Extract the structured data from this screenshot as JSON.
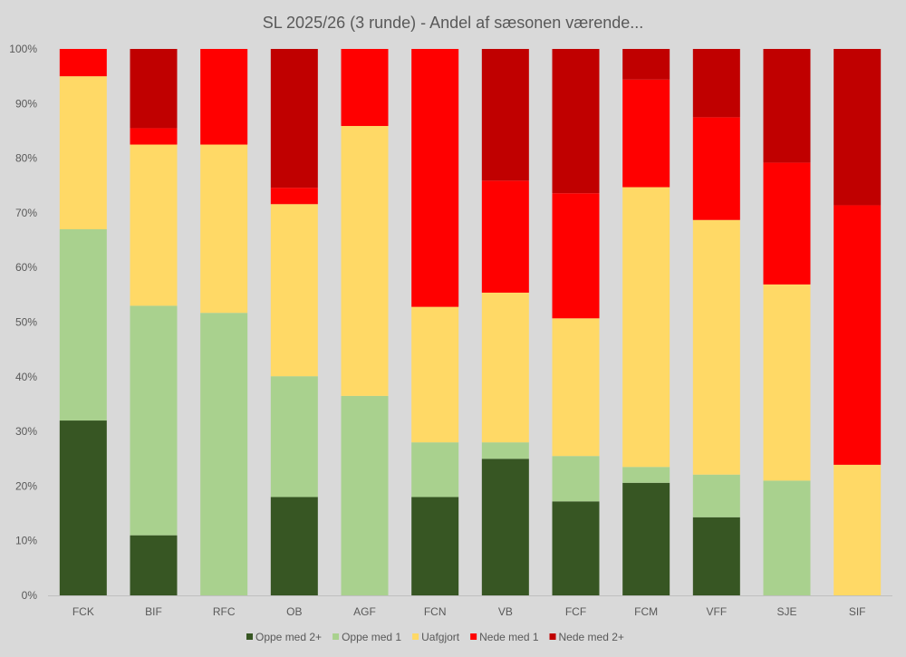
{
  "chart_data": {
    "type": "bar",
    "stacked": true,
    "title": "SL 2025/26 (3 runde) - Andel af sæsonen værende...",
    "xlabel": "",
    "ylabel": "",
    "ylim": [
      0,
      100
    ],
    "y_ticks": [
      "0%",
      "10%",
      "20%",
      "30%",
      "40%",
      "50%",
      "60%",
      "70%",
      "80%",
      "90%",
      "100%"
    ],
    "grid": false,
    "legend_position": "bottom",
    "categories": [
      "FCK",
      "BIF",
      "RFC",
      "OB",
      "AGF",
      "FCN",
      "VB",
      "FCF",
      "FCM",
      "VFF",
      "SJE",
      "SIF"
    ],
    "series": [
      {
        "name": "Oppe med 2+",
        "color": "#375623",
        "values": [
          32,
          11,
          0,
          18,
          0,
          18,
          25,
          17.2,
          20.6,
          14.3,
          0,
          0
        ]
      },
      {
        "name": "Oppe med 1",
        "color": "#a9d18e",
        "values": [
          35,
          42,
          51.7,
          22.1,
          36.5,
          10,
          3,
          8.3,
          2.9,
          7.8,
          21,
          0
        ]
      },
      {
        "name": "Uafgjort",
        "color": "#ffd966",
        "values": [
          28,
          29.5,
          30.8,
          31.5,
          49.4,
          24.8,
          27.4,
          25.2,
          51.2,
          46.6,
          35.9,
          23.9
        ]
      },
      {
        "name": "Nede med 1",
        "color": "#ff0000",
        "values": [
          5,
          3,
          17.5,
          3,
          14.1,
          47.2,
          20.5,
          22.9,
          19.7,
          18.8,
          22.3,
          47.5
        ]
      },
      {
        "name": "Nede med 2+",
        "color": "#c00000",
        "values": [
          0,
          14.5,
          0,
          25.4,
          0,
          0,
          24.1,
          26.4,
          5.6,
          12.5,
          20.8,
          28.6
        ]
      }
    ]
  }
}
